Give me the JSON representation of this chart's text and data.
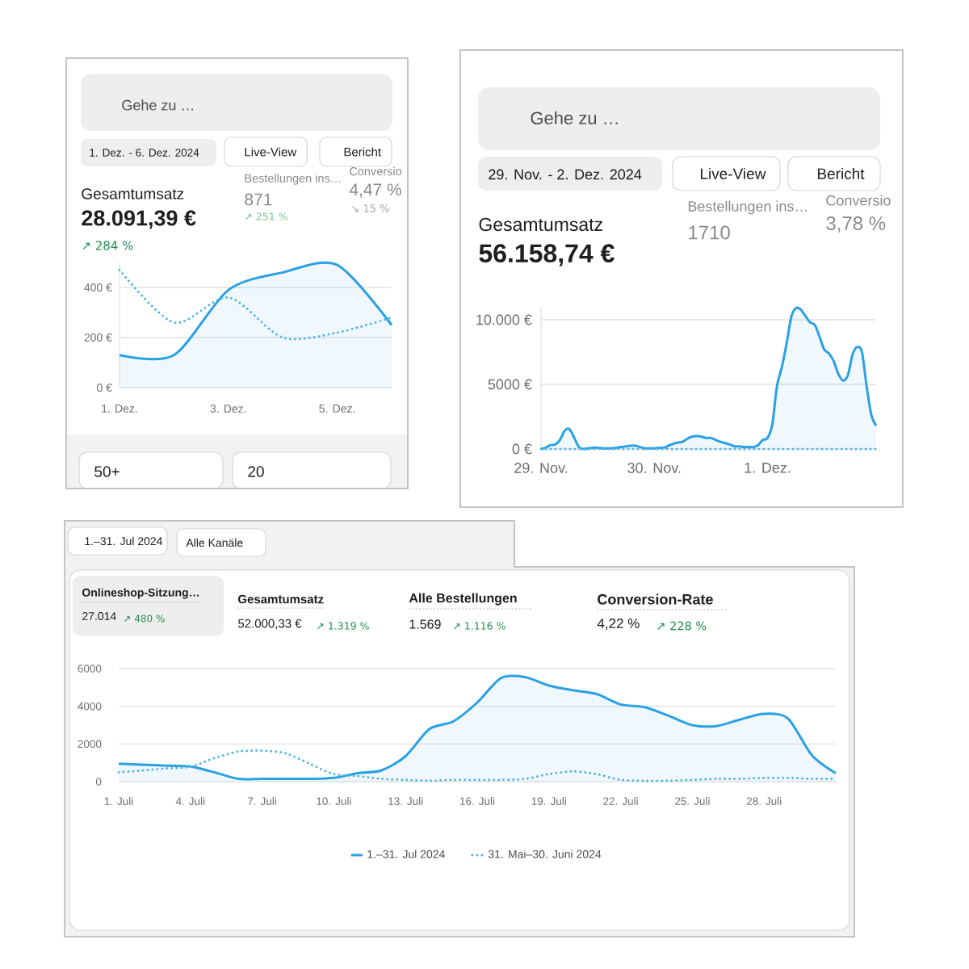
{
  "chart_data": [
    {
      "type": "line",
      "categories": [
        "1. Dez.",
        null,
        "3. Dez.",
        null,
        "5. Dez.",
        null
      ],
      "series": [
        {
          "type": "area",
          "color": "#2aa1e4",
          "line_style": "solid",
          "values": [
            130,
            130,
            390,
            460,
            490,
            250
          ]
        },
        {
          "type": "line",
          "color": "#4fb4ea",
          "line_style": "dotted",
          "values": [
            470,
            260,
            360,
            200,
            220,
            280
          ]
        }
      ],
      "ylim": [
        0,
        500
      ],
      "yticks": [
        {
          "value": 0,
          "label": "0 €"
        },
        {
          "value": 200,
          "label": "200 €"
        },
        {
          "value": 400,
          "label": "400 €"
        }
      ],
      "grid": "y",
      "annotations": [
        "Gehe zu …",
        "1. Dez. - 6. Dez. 2024",
        "Live-View",
        "Bericht",
        "Gesamtumsatz",
        "28.091,39 €",
        "↗ 284 %",
        "Bestellungen ins…",
        "871",
        "↗ 251 %",
        "Conversio",
        "4,47 %",
        "↘ 15 %",
        "50+",
        "20"
      ]
    },
    {
      "type": "line",
      "categories": [
        "29. Nov.",
        null,
        null,
        null,
        null,
        null,
        null,
        null,
        null,
        null,
        null,
        null,
        null,
        null,
        null,
        null,
        null,
        null,
        null,
        null,
        null,
        null,
        null,
        null,
        "30. Nov.",
        null,
        null,
        null,
        null,
        null,
        null,
        null,
        null,
        null,
        null,
        null,
        null,
        null,
        null,
        null,
        null,
        null,
        null,
        null,
        null,
        null,
        null,
        null,
        "1. Dez.",
        null,
        null,
        null,
        null,
        null,
        null,
        null,
        null,
        null,
        null,
        null,
        null,
        null,
        null,
        null,
        null,
        null,
        null,
        null,
        null,
        null,
        null,
        null
      ],
      "series": [
        {
          "type": "area",
          "color": "#2aa1e4",
          "line_style": "solid",
          "values": [
            0,
            100,
            300,
            350,
            700,
            1400,
            1550,
            900,
            150,
            0,
            50,
            100,
            100,
            50,
            50,
            50,
            100,
            150,
            200,
            250,
            250,
            150,
            50,
            50,
            50,
            100,
            100,
            250,
            400,
            500,
            550,
            800,
            950,
            1000,
            950,
            850,
            850,
            700,
            550,
            450,
            350,
            200,
            200,
            150,
            150,
            150,
            300,
            700,
            850,
            1900,
            4900,
            6300,
            8100,
            10200,
            10900,
            10800,
            10300,
            9800,
            9600,
            8700,
            7700,
            7400,
            6800,
            5800,
            5300,
            5700,
            7300,
            7900,
            7500,
            4800,
            2600,
            1800
          ]
        },
        {
          "type": "line",
          "color": "#4fb4ea",
          "line_style": "dotted",
          "values": [
            0,
            0,
            0,
            0,
            0,
            0,
            0,
            0,
            0,
            0,
            0,
            0,
            0,
            0,
            0,
            0,
            0,
            0,
            0,
            0,
            0,
            0,
            0,
            0,
            0,
            0,
            0,
            0,
            0,
            0,
            0,
            0,
            0,
            0,
            0,
            0,
            0,
            0,
            0,
            0,
            0,
            0,
            0,
            0,
            0,
            0,
            0,
            0,
            0,
            0,
            0,
            0,
            0,
            0,
            0,
            0,
            0,
            0,
            0,
            0,
            0,
            0,
            0,
            0,
            0,
            0,
            0,
            0,
            0,
            0,
            0,
            0
          ]
        }
      ],
      "ylim": [
        0,
        11000
      ],
      "yticks": [
        {
          "value": 0,
          "label": "0 €"
        },
        {
          "value": 5000,
          "label": "5000 €"
        },
        {
          "value": 10000,
          "label": "10.000 €"
        }
      ],
      "grid": "y",
      "annotations": [
        "Gehe zu …",
        "29. Nov. - 2. Dez. 2024",
        "Live-View",
        "Bericht",
        "Gesamtumsatz",
        "56.158,74 €",
        "Bestellungen ins…",
        "1710",
        "Conversio",
        "3,78 %"
      ]
    },
    {
      "type": "line",
      "categories": [
        "1. Juli",
        null,
        null,
        "4. Juli",
        null,
        null,
        "7. Juli",
        null,
        null,
        "10. Juli",
        null,
        null,
        "13. Juli",
        null,
        null,
        "16. Juli",
        null,
        null,
        "19. Juli",
        null,
        null,
        "22. Juli",
        null,
        null,
        "25. Juli",
        null,
        null,
        "28. Juli",
        null,
        null,
        null
      ],
      "series": [
        {
          "name": "1.–31. Jul 2024",
          "type": "area",
          "color": "#2aa1e4",
          "line_style": "solid",
          "values": [
            950,
            900,
            850,
            800,
            500,
            150,
            150,
            150,
            150,
            200,
            450,
            600,
            1350,
            2800,
            3200,
            4200,
            5500,
            5550,
            5100,
            4850,
            4650,
            4100,
            3950,
            3500,
            3000,
            2950,
            3300,
            3600,
            3350,
            1400,
            450
          ]
        },
        {
          "name": "31. Mai–30. Juni 2024",
          "type": "line",
          "color": "#4fb4ea",
          "line_style": "dotted",
          "values": [
            500,
            600,
            700,
            800,
            1250,
            1600,
            1650,
            1500,
            950,
            400,
            300,
            150,
            100,
            50,
            100,
            100,
            100,
            150,
            400,
            550,
            400,
            100,
            50,
            50,
            100,
            150,
            150,
            200,
            200,
            150,
            150
          ]
        }
      ],
      "ylim": [
        0,
        6000
      ],
      "yticks": [
        0,
        2000,
        4000,
        6000
      ],
      "grid": "y",
      "legend": "bottom",
      "annotations": [
        "1.–31. Jul 2024",
        "Alle Kanäle",
        "Onlineshop-Sitzung…",
        "27.014",
        "↗ 480 %",
        "Gesamtumsatz",
        "52.000,33 €",
        "↗ 1.319 %",
        "Alle Bestellungen",
        "1.569",
        "↗ 1.116 %",
        "Conversion-Rate",
        "4,22 %",
        "↗ 228 %"
      ]
    }
  ]
}
